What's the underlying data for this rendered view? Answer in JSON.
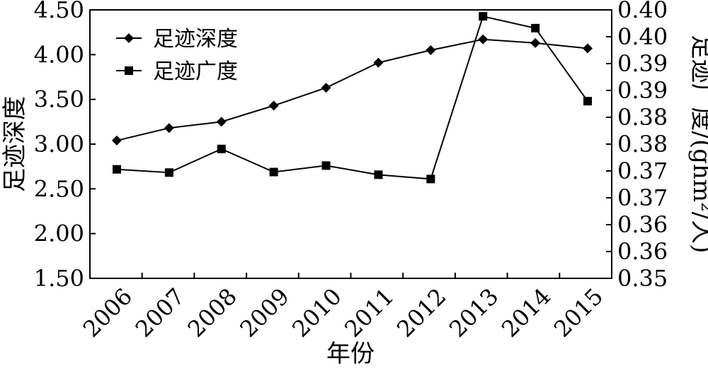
{
  "chart_data": {
    "type": "line",
    "title": "",
    "xlabel": "年份",
    "ylabel_left": "足迹深度",
    "ylabel_right": "足迹广度/(ghm²/人)",
    "categories": [
      "2006",
      "2007",
      "2008",
      "2009",
      "2010",
      "2011",
      "2012",
      "2013",
      "2014",
      "2015"
    ],
    "ylim_left": [
      1.5,
      4.5
    ],
    "ylim_right": [
      0.35,
      0.4
    ],
    "left_ticks": [
      "1.50",
      "2.00",
      "2.50",
      "3.00",
      "3.50",
      "4.00",
      "4.50"
    ],
    "right_ticks": [
      "0.35",
      "0.36",
      "0.36",
      "0.37",
      "0.37",
      "0.38",
      "0.38",
      "0.39",
      "0.39",
      "0.40",
      "0.40"
    ],
    "grid": false,
    "legend_position": "top-left",
    "series": [
      {
        "name": "足迹深度",
        "axis": "left",
        "marker": "diamond",
        "color": "#000000",
        "values": [
          3.04,
          3.18,
          3.25,
          3.43,
          3.63,
          3.91,
          4.05,
          4.17,
          4.13,
          4.07
        ]
      },
      {
        "name": "足迹广度",
        "axis": "right",
        "marker": "square",
        "color": "#000000",
        "values": [
          0.3703,
          0.3697,
          0.3741,
          0.3698,
          0.371,
          0.3693,
          0.3685,
          0.3988,
          0.3966,
          0.383
        ]
      }
    ]
  }
}
